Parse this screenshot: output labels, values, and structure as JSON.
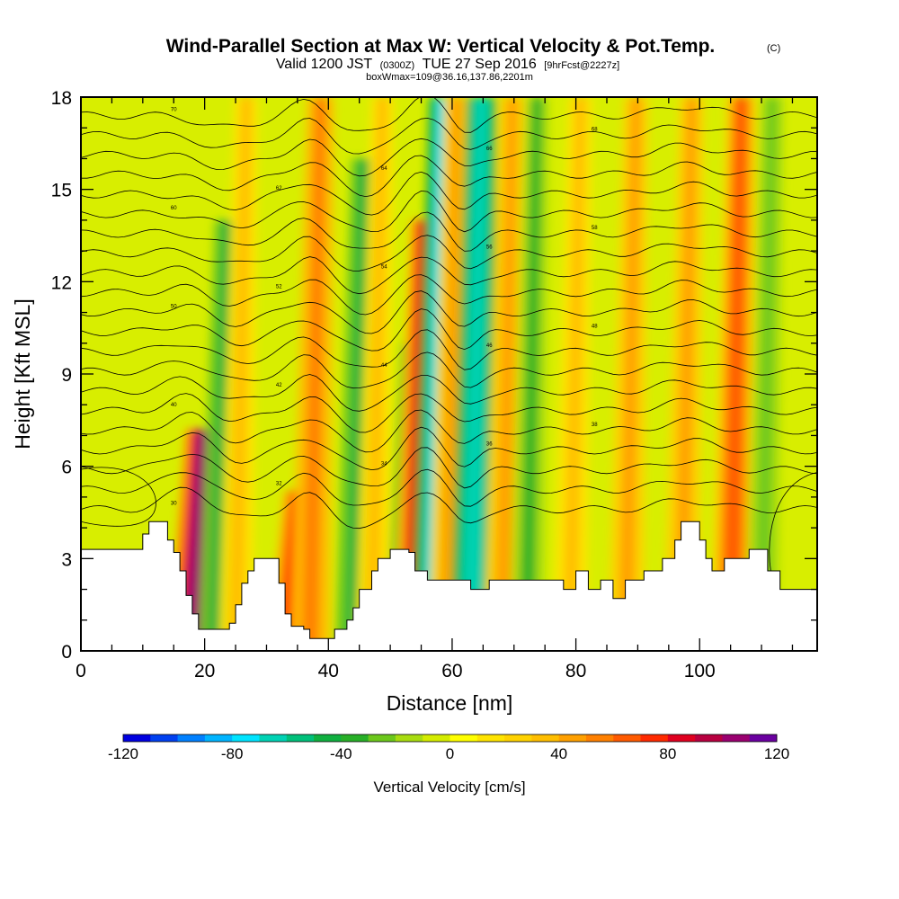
{
  "chart_data": {
    "type": "heatmap",
    "title": "Wind-Parallel Section at Max W: Vertical Velocity & Pot.Temp.",
    "title_mark": "(C)",
    "subtitle_main": "Valid 1200 JST",
    "subtitle_zulu": "(0300Z)",
    "subtitle_date": "TUE 27 Sep 2016",
    "subtitle_fcst": "[9hrFcst@2227z]",
    "subtitle2": "boxWmax=109@36.16,137.86,2201m",
    "xlabel": "Distance [nm]",
    "ylabel": "Height [Kft MSL]",
    "xlim": [
      0,
      119
    ],
    "ylim": [
      0,
      18
    ],
    "x_ticks": [
      0,
      20,
      40,
      60,
      80,
      100
    ],
    "y_ticks": [
      0,
      3,
      6,
      9,
      12,
      15,
      18
    ],
    "colorbar": {
      "label": "Vertical Velocity [cm/s]",
      "range": [
        -120,
        120
      ],
      "tick_values": [
        -120,
        -80,
        -40,
        0,
        40,
        80,
        120
      ],
      "colors": [
        "#0000e0",
        "#0040f0",
        "#0080ff",
        "#00b4ff",
        "#00e4ff",
        "#00d2b4",
        "#00c07a",
        "#10b040",
        "#28b028",
        "#6cc81c",
        "#a8dc10",
        "#d4ec00",
        "#ffff00",
        "#ffe400",
        "#ffd200",
        "#ffbe00",
        "#ffa000",
        "#ff8000",
        "#ff5a00",
        "#ff2a00",
        "#e00020",
        "#b80040",
        "#9a0070",
        "#6a00a0"
      ]
    },
    "vertical_velocity_features": [
      {
        "x": 18,
        "z_top": 7.2,
        "w": 105
      },
      {
        "x": 22,
        "z_top": 14,
        "w": -50
      },
      {
        "x": 25,
        "z_top": 18,
        "w": 35
      },
      {
        "x": 33.5,
        "z_top": 5.2,
        "w": 75
      },
      {
        "x": 37,
        "z_top": 18,
        "w": 55
      },
      {
        "x": 44,
        "z_top": 16,
        "w": -45
      },
      {
        "x": 47,
        "z_top": 18,
        "w": 30
      },
      {
        "x": 52,
        "z_top": 10,
        "w": -40
      },
      {
        "x": 54,
        "z_top": 14,
        "w": 80
      },
      {
        "x": 57,
        "z_top": 18,
        "w": -80
      },
      {
        "x": 59,
        "z_top": 18,
        "w": 45
      },
      {
        "x": 63,
        "z_top": 18,
        "w": -70
      },
      {
        "x": 68,
        "z_top": 18,
        "w": 45
      },
      {
        "x": 72,
        "z_top": 18,
        "w": -35
      },
      {
        "x": 79,
        "z_top": 18,
        "w": 35
      },
      {
        "x": 88,
        "z_top": 18,
        "w": 40
      },
      {
        "x": 97,
        "z_top": 18,
        "w": 40
      },
      {
        "x": 105,
        "z_top": 18,
        "w": 65
      },
      {
        "x": 110,
        "z_top": 18,
        "w": -30
      }
    ],
    "theta_contour_labels": [
      "30",
      "32",
      "34",
      "36",
      "38",
      "40",
      "42",
      "44",
      "46",
      "48",
      "50",
      "52",
      "54",
      "56",
      "58",
      "60",
      "62",
      "64",
      "66",
      "68",
      "70"
    ],
    "terrain_height_kft": [
      [
        0,
        3.3
      ],
      [
        8,
        3.3
      ],
      [
        10,
        3.8
      ],
      [
        11,
        4.2
      ],
      [
        13,
        4.2
      ],
      [
        14,
        3.6
      ],
      [
        15,
        3.2
      ],
      [
        16,
        2.6
      ],
      [
        17,
        1.8
      ],
      [
        18,
        1.2
      ],
      [
        19,
        0.7
      ],
      [
        21,
        0.7
      ],
      [
        24,
        0.9
      ],
      [
        25,
        1.5
      ],
      [
        26,
        2.2
      ],
      [
        27,
        2.6
      ],
      [
        28,
        3.0
      ],
      [
        30,
        3.0
      ],
      [
        32,
        2.2
      ],
      [
        33,
        1.2
      ],
      [
        34,
        0.8
      ],
      [
        36,
        0.7
      ],
      [
        37,
        0.4
      ],
      [
        40,
        0.4
      ],
      [
        41,
        0.7
      ],
      [
        43,
        1.0
      ],
      [
        44,
        1.4
      ],
      [
        45,
        2.0
      ],
      [
        47,
        2.6
      ],
      [
        48,
        3.0
      ],
      [
        50,
        3.3
      ],
      [
        53,
        3.2
      ],
      [
        54,
        2.6
      ],
      [
        56,
        2.3
      ],
      [
        60,
        2.3
      ],
      [
        63,
        2.0
      ],
      [
        66,
        2.3
      ],
      [
        75,
        2.3
      ],
      [
        78,
        2.0
      ],
      [
        80,
        2.6
      ],
      [
        82,
        2.0
      ],
      [
        84,
        2.3
      ],
      [
        86,
        1.7
      ],
      [
        88,
        2.3
      ],
      [
        91,
        2.6
      ],
      [
        94,
        3.0
      ],
      [
        96,
        3.6
      ],
      [
        97,
        4.2
      ],
      [
        99,
        4.2
      ],
      [
        100,
        3.6
      ],
      [
        101,
        3.0
      ],
      [
        102,
        2.6
      ],
      [
        104,
        3.0
      ],
      [
        108,
        3.3
      ],
      [
        111,
        2.6
      ],
      [
        113,
        2.0
      ],
      [
        119,
        2.0
      ]
    ]
  }
}
